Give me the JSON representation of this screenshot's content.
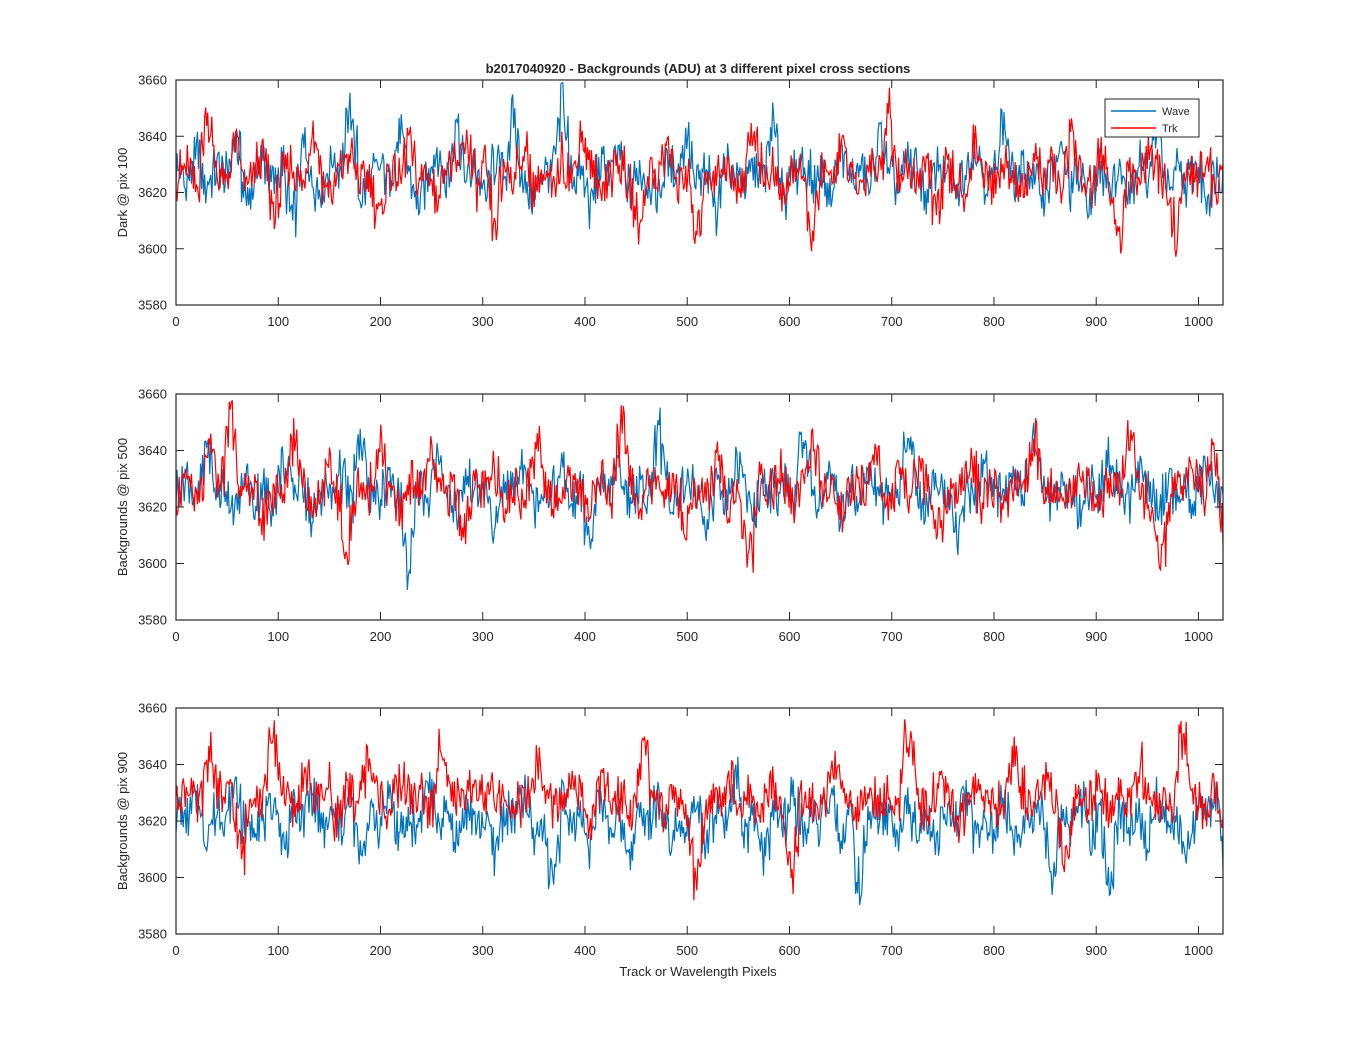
{
  "title": "b2017040920 - Backgrounds (ADU) at 3 different pixel cross sections",
  "xlabel": "Track or Wavelength Pixels",
  "legend": {
    "position": "top-right",
    "entries": [
      {
        "name": "Wave",
        "color": "#0072BD"
      },
      {
        "name": "Trk",
        "color": "#FF0000"
      }
    ]
  },
  "chart_data": [
    {
      "type": "line",
      "ylabel": "Dark @ pix 100",
      "xlim": [
        0,
        1024
      ],
      "ylim": [
        3580,
        3660
      ],
      "xticks": [
        "0",
        "100",
        "200",
        "300",
        "400",
        "500",
        "600",
        "700",
        "800",
        "900",
        "1000"
      ],
      "yticks": [
        "3580",
        "3600",
        "3620",
        "3640",
        "3660"
      ],
      "grid": false,
      "legend": "top-right",
      "series": [
        {
          "name": "Wave",
          "color": "#0072BD",
          "x_range": [
            0,
            1024
          ],
          "values": [
            3628,
            3622,
            3636,
            3619,
            3631,
            3625,
            3641,
            3617,
            3626,
            3633,
            3621,
            3629,
            3606,
            3638,
            3624,
            3620,
            3632,
            3627,
            3653,
            3618,
            3625,
            3630,
            3622,
            3643,
            3628,
            3613,
            3626,
            3635,
            3621,
            3647,
            3624,
            3629,
            3619,
            3633,
            3626,
            3648,
            3622,
            3617,
            3630,
            3625,
            3654,
            3623,
            3628,
            3615,
            3631,
            3627,
            3636,
            3620,
            3629,
            3624,
            3618,
            3632,
            3626,
            3641,
            3621,
            3628,
            3612,
            3634,
            3625,
            3622,
            3630,
            3627,
            3646,
            3619,
            3626,
            3631,
            3623,
            3628,
            3617,
            3635,
            3624,
            3629,
            3621,
            3642,
            3626,
            3622,
            3633,
            3627,
            3618,
            3630,
            3625,
            3620,
            3629,
            3636,
            3623,
            3627,
            3648,
            3621,
            3631,
            3625,
            3619,
            3628,
            3634,
            3622,
            3626,
            3613,
            3630,
            3624,
            3627,
            3621,
            3632,
            3626,
            3645,
            3620,
            3628,
            3623,
            3631,
            3617,
            3629,
            3626
          ]
        },
        {
          "name": "Trk",
          "color": "#FF0000",
          "x_range": [
            0,
            1024
          ],
          "values": [
            3625,
            3630,
            3618,
            3651,
            3627,
            3623,
            3639,
            3620,
            3628,
            3633,
            3611,
            3626,
            3631,
            3622,
            3645,
            3624,
            3619,
            3629,
            3634,
            3621,
            3627,
            3609,
            3631,
            3625,
            3638,
            3623,
            3628,
            3617,
            3632,
            3626,
            3641,
            3621,
            3628,
            3604,
            3630,
            3625,
            3636,
            3622,
            3627,
            3619,
            3633,
            3624,
            3642,
            3628,
            3620,
            3626,
            3631,
            3623,
            3607,
            3629,
            3625,
            3637,
            3622,
            3628,
            3601,
            3630,
            3624,
            3633,
            3619,
            3627,
            3646,
            3623,
            3628,
            3616,
            3631,
            3625,
            3602,
            3629,
            3622,
            3638,
            3626,
            3621,
            3632,
            3627,
            3654,
            3620,
            3628,
            3624,
            3633,
            3611,
            3629,
            3625,
            3619,
            3640,
            3626,
            3622,
            3631,
            3627,
            3617,
            3634,
            3624,
            3628,
            3621,
            3643,
            3626,
            3620,
            3631,
            3625,
            3600,
            3629,
            3622,
            3636,
            3627,
            3621,
            3605,
            3630,
            3624,
            3633,
            3619,
            3628
          ]
        }
      ]
    },
    {
      "type": "line",
      "ylabel": "Backgrounds @ pix 500",
      "xlim": [
        0,
        1024
      ],
      "ylim": [
        3580,
        3660
      ],
      "xticks": [
        "0",
        "100",
        "200",
        "300",
        "400",
        "500",
        "600",
        "700",
        "800",
        "900",
        "1000"
      ],
      "yticks": [
        "3580",
        "3600",
        "3620",
        "3640",
        "3660"
      ],
      "grid": false,
      "legend": "none",
      "series": [
        {
          "name": "Wave",
          "color": "#0072BD",
          "x_range": [
            0,
            1024
          ],
          "values": [
            3626,
            3631,
            3620,
            3643,
            3624,
            3628,
            3617,
            3633,
            3622,
            3627,
            3619,
            3636,
            3625,
            3630,
            3613,
            3628,
            3623,
            3634,
            3620,
            3646,
            3626,
            3621,
            3631,
            3625,
            3594,
            3629,
            3622,
            3637,
            3627,
            3618,
            3632,
            3624,
            3628,
            3607,
            3631,
            3625,
            3640,
            3621,
            3628,
            3624,
            3633,
            3619,
            3627,
            3605,
            3630,
            3624,
            3638,
            3621,
            3628,
            3623,
            3654,
            3626,
            3620,
            3632,
            3625,
            3613,
            3629,
            3622,
            3635,
            3627,
            3618,
            3631,
            3624,
            3628,
            3621,
            3647,
            3626,
            3622,
            3630,
            3616,
            3628,
            3624,
            3634,
            3620,
            3627,
            3623,
            3650,
            3625,
            3619,
            3630,
            3626,
            3608,
            3629,
            3622,
            3636,
            3627,
            3621,
            3632,
            3624,
            3648,
            3628,
            3620,
            3631,
            3625,
            3618,
            3629,
            3623,
            3640,
            3626,
            3621,
            3633,
            3627,
            3619,
            3630,
            3624,
            3628,
            3622,
            3631,
            3625,
            3620
          ]
        },
        {
          "name": "Trk",
          "color": "#FF0000",
          "x_range": [
            0,
            1024
          ],
          "values": [
            3624,
            3629,
            3618,
            3642,
            3626,
            3657,
            3621,
            3630,
            3614,
            3627,
            3623,
            3650,
            3625,
            3620,
            3632,
            3627,
            3601,
            3629,
            3622,
            3644,
            3626,
            3619,
            3631,
            3625,
            3638,
            3621,
            3628,
            3610,
            3630,
            3624,
            3635,
            3620,
            3627,
            3623,
            3645,
            3626,
            3621,
            3631,
            3625,
            3617,
            3629,
            3622,
            3652,
            3627,
            3620,
            3632,
            3624,
            3629,
            3612,
            3628,
            3625,
            3636,
            3621,
            3627,
            3596,
            3630,
            3624,
            3633,
            3619,
            3628,
            3645,
            3623,
            3627,
            3616,
            3631,
            3625,
            3642,
            3620,
            3628,
            3623,
            3634,
            3626,
            3610,
            3629,
            3624,
            3638,
            3621,
            3627,
            3618,
            3632,
            3625,
            3644,
            3622,
            3628,
            3620,
            3631,
            3626,
            3617,
            3629,
            3624,
            3649,
            3621,
            3627,
            3598,
            3630,
            3625,
            3636,
            3622,
            3643,
            3602
          ]
        }
      ]
    },
    {
      "type": "line",
      "ylabel": "Backgrounds @ pix 900",
      "xlim": [
        0,
        1024
      ],
      "ylim": [
        3580,
        3660
      ],
      "xticks": [
        "0",
        "100",
        "200",
        "300",
        "400",
        "500",
        "600",
        "700",
        "800",
        "900",
        "1000"
      ],
      "yticks": [
        "3580",
        "3600",
        "3620",
        "3640",
        "3660"
      ],
      "grid": false,
      "legend": "none",
      "series": [
        {
          "name": "Wave",
          "color": "#0072BD",
          "x_range": [
            0,
            1024
          ],
          "values": [
            3624,
            3619,
            3630,
            3612,
            3626,
            3621,
            3634,
            3615,
            3623,
            3618,
            3628,
            3609,
            3625,
            3620,
            3632,
            3614,
            3622,
            3617,
            3627,
            3606,
            3624,
            3619,
            3630,
            3613,
            3621,
            3616,
            3636,
            3618,
            3623,
            3611,
            3628,
            3617,
            3622,
            3607,
            3625,
            3619,
            3631,
            3614,
            3621,
            3596,
            3626,
            3618,
            3623,
            3612,
            3629,
            3617,
            3622,
            3609,
            3624,
            3619,
            3631,
            3614,
            3621,
            3616,
            3627,
            3611,
            3623,
            3618,
            3635,
            3613,
            3622,
            3608,
            3625,
            3619,
            3629,
            3615,
            3621,
            3617,
            3628,
            3612,
            3624,
            3591,
            3626,
            3618,
            3623,
            3613,
            3630,
            3617,
            3622,
            3610,
            3625,
            3619,
            3632,
            3614,
            3621,
            3616,
            3628,
            3611,
            3623,
            3618,
            3627,
            3596,
            3624,
            3619,
            3630,
            3613,
            3621,
            3594,
            3626,
            3617,
            3622,
            3612,
            3629,
            3618,
            3622,
            3608,
            3625,
            3619,
            3631,
            3607
          ]
        },
        {
          "name": "Trk",
          "color": "#FF0000",
          "x_range": [
            0,
            1024
          ],
          "values": [
            3628,
            3633,
            3622,
            3646,
            3627,
            3631,
            3605,
            3635,
            3626,
            3652,
            3629,
            3623,
            3638,
            3627,
            3633,
            3620,
            3630,
            3625,
            3643,
            3628,
            3624,
            3636,
            3627,
            3631,
            3621,
            3650,
            3628,
            3624,
            3635,
            3626,
            3632,
            3622,
            3629,
            3625,
            3641,
            3627,
            3623,
            3634,
            3628,
            3619,
            3633,
            3626,
            3630,
            3623,
            3648,
            3627,
            3622,
            3631,
            3626,
            3598,
            3629,
            3625,
            3637,
            3624,
            3628,
            3621,
            3635,
            3627,
            3599,
            3631,
            3626,
            3623,
            3642,
            3627,
            3621,
            3633,
            3626,
            3630,
            3622,
            3655,
            3628,
            3624,
            3634,
            3627,
            3619,
            3631,
            3625,
            3629,
            3623,
            3646,
            3628,
            3624,
            3636,
            3626,
            3602,
            3630,
            3625,
            3633,
            3621,
            3629,
            3626,
            3640,
            3624,
            3628,
            3622,
            3655,
            3627,
            3623,
            3631,
            3620
          ]
        }
      ]
    }
  ]
}
